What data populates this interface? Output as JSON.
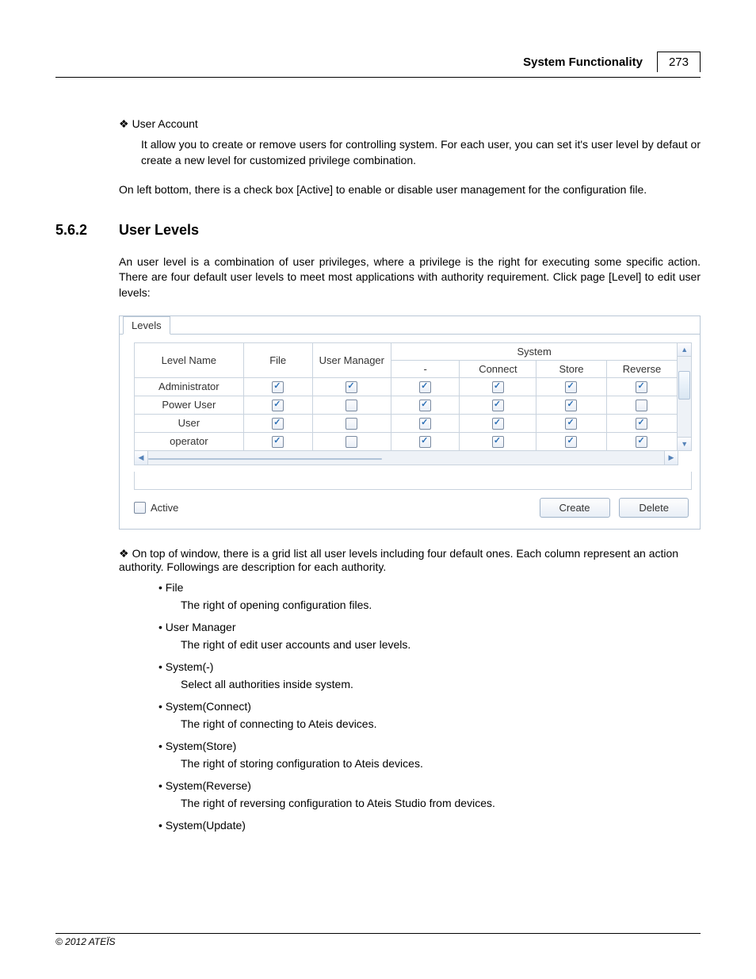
{
  "header": {
    "title": "System Functionality",
    "page_no": "273"
  },
  "intro": {
    "bullet_title": "User Account",
    "bullet_text": "It allow you to create or remove users for controlling system. For each user, you can set it's user level by defaut or create a new level for customized privilege combination.",
    "para2": "On left bottom, there is a check box [Active] to enable or disable user management for the configuration file."
  },
  "section": {
    "num": "5.6.2",
    "title": "User Levels"
  },
  "section_text": "An user level is a combination of user privileges, where a privilege is the right for executing some specific action. There are four default user levels to meet most applications with authority requirement. Click page [Level] to edit user levels:",
  "levels_window": {
    "tab": "Levels",
    "group_header": "System",
    "cols_top": [
      "Level Name",
      "File",
      "User Manager"
    ],
    "cols_sys": [
      "-",
      "Connect",
      "Store",
      "Reverse"
    ],
    "rows": [
      {
        "name": "Administrator",
        "file": true,
        "um": true,
        "dash": true,
        "connect": true,
        "store": true,
        "reverse": true
      },
      {
        "name": "Power User",
        "file": true,
        "um": false,
        "dash": true,
        "connect": true,
        "store": true,
        "reverse": false
      },
      {
        "name": "User",
        "file": true,
        "um": false,
        "dash": true,
        "connect": true,
        "store": true,
        "reverse": true
      },
      {
        "name": "operator",
        "file": true,
        "um": false,
        "dash": true,
        "connect": true,
        "store": true,
        "reverse": true
      }
    ],
    "active_label": "Active",
    "active_checked": false,
    "create_btn": "Create",
    "delete_btn": "Delete"
  },
  "after_grid": "On top of window, there is a grid list all user levels including four default ones. Each column represent an action authority. Followings are description for each authority.",
  "auth_list": [
    {
      "name": "File",
      "desc": "The right of opening configuration files."
    },
    {
      "name": "User Manager",
      "desc": "The right of edit user accounts and user levels."
    },
    {
      "name": "System(-)",
      "desc": "Select all authorities inside system."
    },
    {
      "name": "System(Connect)",
      "desc": "The right of connecting to Ateis devices."
    },
    {
      "name": "System(Store)",
      "desc": "The right of storing configuration to Ateis devices."
    },
    {
      "name": "System(Reverse)",
      "desc": "The right of reversing configuration to Ateis Studio from devices."
    },
    {
      "name": "System(Update)",
      "desc": ""
    }
  ],
  "footer": "© 2012 ATEÏS"
}
